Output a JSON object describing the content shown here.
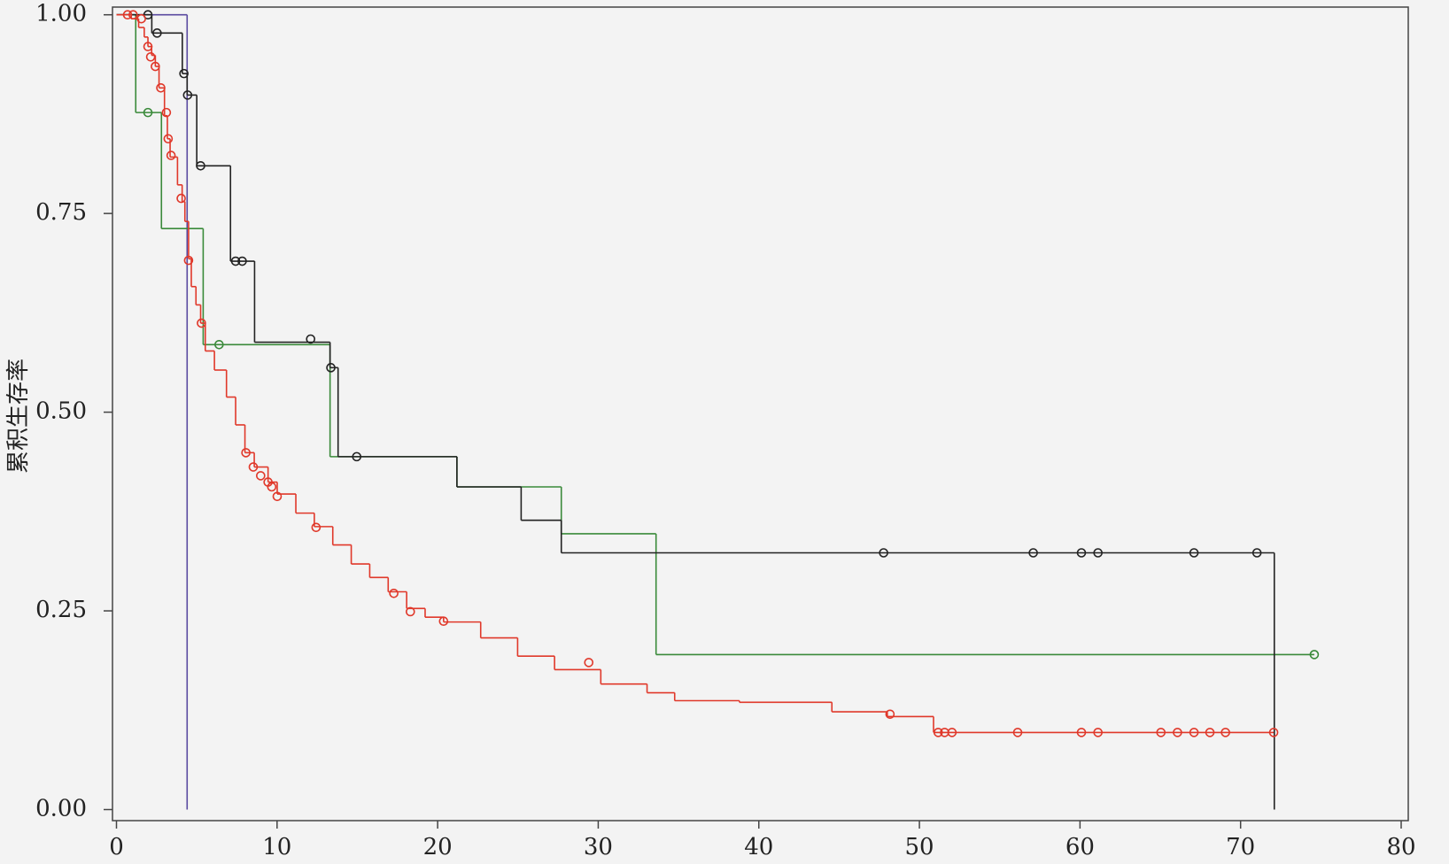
{
  "chart_data": {
    "type": "step",
    "y_label": "累积生存率",
    "xlim": [
      0,
      80
    ],
    "xticks": [
      0,
      10,
      20,
      30,
      40,
      50,
      60,
      70,
      80
    ],
    "ylim": [
      0,
      1
    ],
    "yticks": [
      {
        "value": 0,
        "label": "0.00"
      },
      {
        "value": 0.25,
        "label": "0.25"
      },
      {
        "value": 0.5,
        "label": "0.50"
      },
      {
        "value": 0.75,
        "label": "0.75"
      },
      {
        "value": 1,
        "label": "1.00"
      }
    ],
    "series": [
      {
        "color": "#5a4aa0",
        "x": [
          0,
          4.4
        ],
        "values": [
          1,
          0
        ],
        "censored_x": [],
        "censored_values": []
      },
      {
        "color": "#3a8a3a",
        "x": [
          0,
          1.2,
          2.8,
          5.4,
          13.3,
          21.2,
          27.7,
          33.6
        ],
        "values": [
          1,
          0.877,
          0.731,
          0.585,
          0.444,
          0.406,
          0.347,
          0.195
        ],
        "censored_x": [
          1.96,
          6.39,
          74.59
        ],
        "censored_values": [
          0.877,
          0.585,
          0.195
        ]
      },
      {
        "color": "#222222",
        "x": [
          0,
          2.2,
          4.1,
          4.4,
          5.0,
          7.1,
          8.6,
          13.3,
          13.8,
          21.2,
          25.2,
          27.7,
          72.1
        ],
        "values": [
          1,
          0.977,
          0.926,
          0.899,
          0.81,
          0.69,
          0.588,
          0.556,
          0.444,
          0.406,
          0.364,
          0.323,
          0
        ],
        "censored_x": [
          1.96,
          2.53,
          4.2,
          4.43,
          5.24,
          7.42,
          7.83,
          12.09,
          13.35,
          14.96,
          47.77,
          57.09,
          60.09,
          61.12,
          67.1,
          71.02
        ],
        "censored_values": [
          1,
          0.977,
          0.926,
          0.899,
          0.81,
          0.69,
          0.69,
          0.592,
          0.556,
          0.444,
          0.323,
          0.323,
          0.323,
          0.323,
          0.323,
          0.323
        ]
      },
      {
        "color": "#e0382a",
        "x": [
          0,
          0.92,
          1.38,
          1.73,
          1.96,
          2.19,
          2.42,
          2.65,
          2.99,
          3.17,
          3.34,
          3.8,
          4.09,
          4.26,
          4.49,
          4.66,
          4.95,
          5.24,
          5.53,
          6.1,
          6.85,
          7.42,
          8.0,
          8.58,
          9.44,
          10.01,
          11.17,
          12.32,
          13.47,
          14.62,
          15.77,
          16.92,
          18.07,
          19.22,
          20.37,
          22.68,
          24.98,
          27.28,
          30.16,
          33.04,
          34.76,
          38.79,
          44.55,
          48.0,
          50.88
        ],
        "values": [
          1,
          0.995,
          0.984,
          0.972,
          0.96,
          0.949,
          0.935,
          0.908,
          0.873,
          0.844,
          0.821,
          0.786,
          0.765,
          0.74,
          0.693,
          0.658,
          0.635,
          0.612,
          0.577,
          0.553,
          0.519,
          0.484,
          0.449,
          0.431,
          0.412,
          0.397,
          0.373,
          0.356,
          0.333,
          0.309,
          0.292,
          0.274,
          0.253,
          0.242,
          0.236,
          0.216,
          0.193,
          0.176,
          0.158,
          0.147,
          0.137,
          0.135,
          0.123,
          0.117,
          0.097
        ],
        "censored_x": [
          0.69,
          1.04,
          1.55,
          1.96,
          2.13,
          2.42,
          2.76,
          3.11,
          3.22,
          3.4,
          4.03,
          4.49,
          5.29,
          8.06,
          8.52,
          8.98,
          9.44,
          9.67,
          10.01,
          12.43,
          17.27,
          18.3,
          20.37,
          29.41,
          48.17,
          51.17,
          51.57,
          52.03,
          56.12,
          60.09,
          61.12,
          65.04,
          66.07,
          67.1,
          68.09,
          69.06,
          72.06
        ],
        "censored_values": [
          1,
          1,
          0.995,
          0.96,
          0.947,
          0.935,
          0.908,
          0.877,
          0.844,
          0.823,
          0.769,
          0.691,
          0.612,
          0.449,
          0.431,
          0.42,
          0.412,
          0.406,
          0.394,
          0.355,
          0.272,
          0.249,
          0.237,
          0.185,
          0.12,
          0.097,
          0.097,
          0.097,
          0.097,
          0.097,
          0.097,
          0.097,
          0.097,
          0.097,
          0.097,
          0.097,
          0.097
        ]
      }
    ]
  }
}
